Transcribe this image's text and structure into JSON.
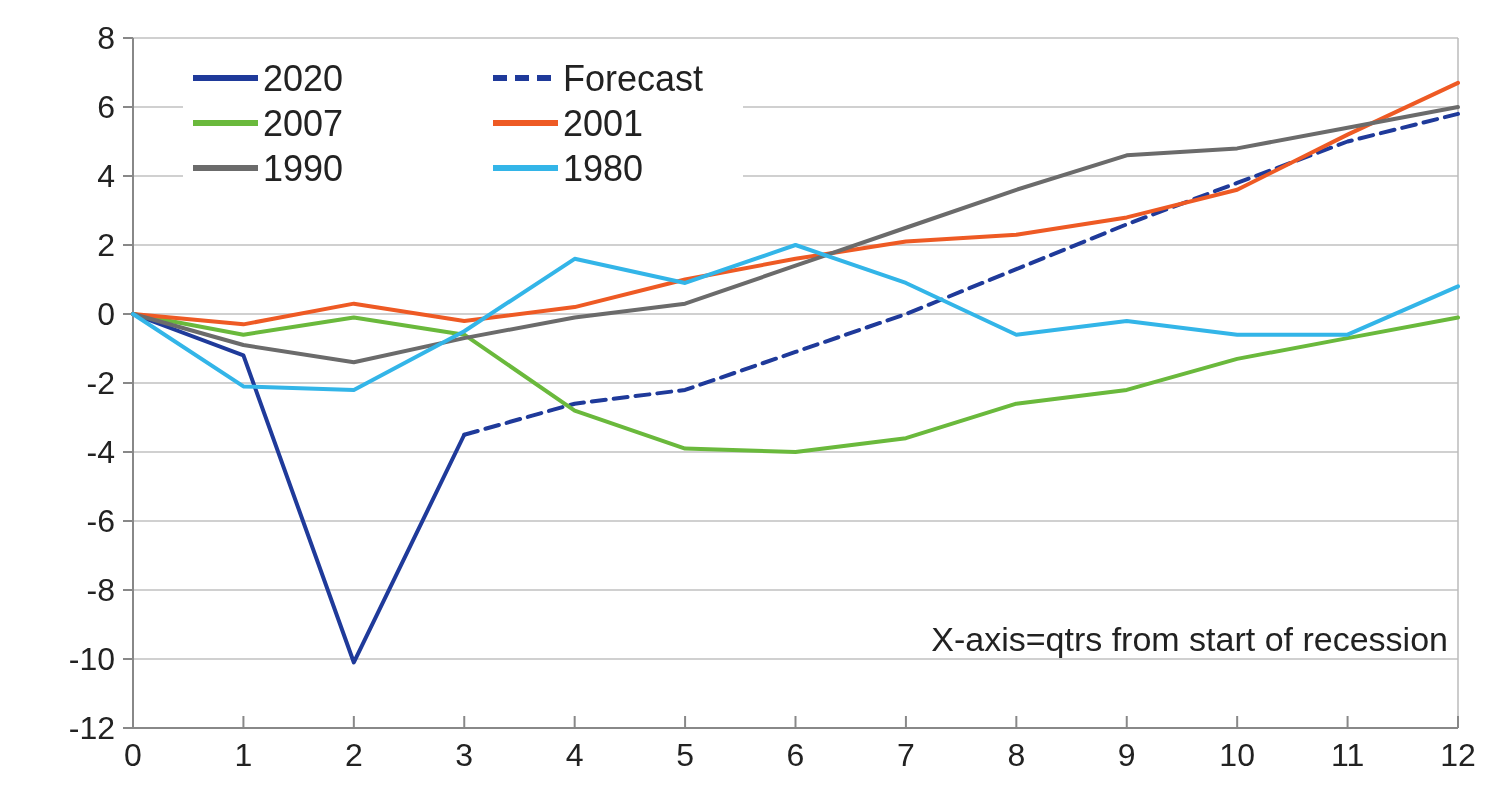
{
  "chart_data": {
    "type": "line",
    "x": [
      0,
      1,
      2,
      3,
      4,
      5,
      6,
      7,
      8,
      9,
      10,
      11,
      12
    ],
    "xlim": [
      0,
      12
    ],
    "xticks": [
      0,
      1,
      2,
      3,
      4,
      5,
      6,
      7,
      8,
      9,
      10,
      11,
      12
    ],
    "ylim": [
      -12,
      8
    ],
    "yticks": [
      -12,
      -10,
      -8,
      -6,
      -4,
      -2,
      0,
      2,
      4,
      6,
      8
    ],
    "grid": "y",
    "legend": "top left",
    "annotations": [
      "X-axis=qtrs from start of recession"
    ],
    "series": [
      {
        "name": "2020",
        "color": "#1f3a9a",
        "x": [
          0,
          1,
          2,
          3
        ],
        "values": [
          0,
          -1.2,
          -10.1,
          -3.5
        ]
      },
      {
        "name": "Forecast",
        "color": "#1f3a9a",
        "line_style": "dashed",
        "x": [
          3,
          4,
          5,
          6,
          7,
          8,
          9,
          10,
          11,
          12
        ],
        "values": [
          -3.5,
          -2.6,
          -2.2,
          -1.1,
          0,
          1.3,
          2.6,
          3.8,
          5,
          5.8
        ]
      },
      {
        "name": "2007",
        "color": "#6ab93c",
        "values": [
          0,
          -0.6,
          -0.1,
          -0.6,
          -2.8,
          -3.9,
          -4,
          -3.6,
          -2.6,
          -2.2,
          -1.3,
          -0.7,
          -0.1
        ]
      },
      {
        "name": "2001",
        "color": "#ee5a24",
        "values": [
          0,
          -0.3,
          0.3,
          -0.2,
          0.2,
          1,
          1.6,
          2.1,
          2.3,
          2.8,
          3.6,
          5.2,
          6.7
        ]
      },
      {
        "name": "1990",
        "color": "#6b6b6b",
        "values": [
          0,
          -0.9,
          -1.4,
          -0.7,
          -0.1,
          0.3,
          1.4,
          2.5,
          3.6,
          4.6,
          4.8,
          5.4,
          6
        ]
      },
      {
        "name": "1980",
        "color": "#33b5e8",
        "values": [
          0,
          -2.1,
          -2.2,
          -0.5,
          1.6,
          0.9,
          2,
          0.9,
          -0.6,
          -0.2,
          -0.6,
          -0.6,
          0.8
        ]
      }
    ]
  }
}
